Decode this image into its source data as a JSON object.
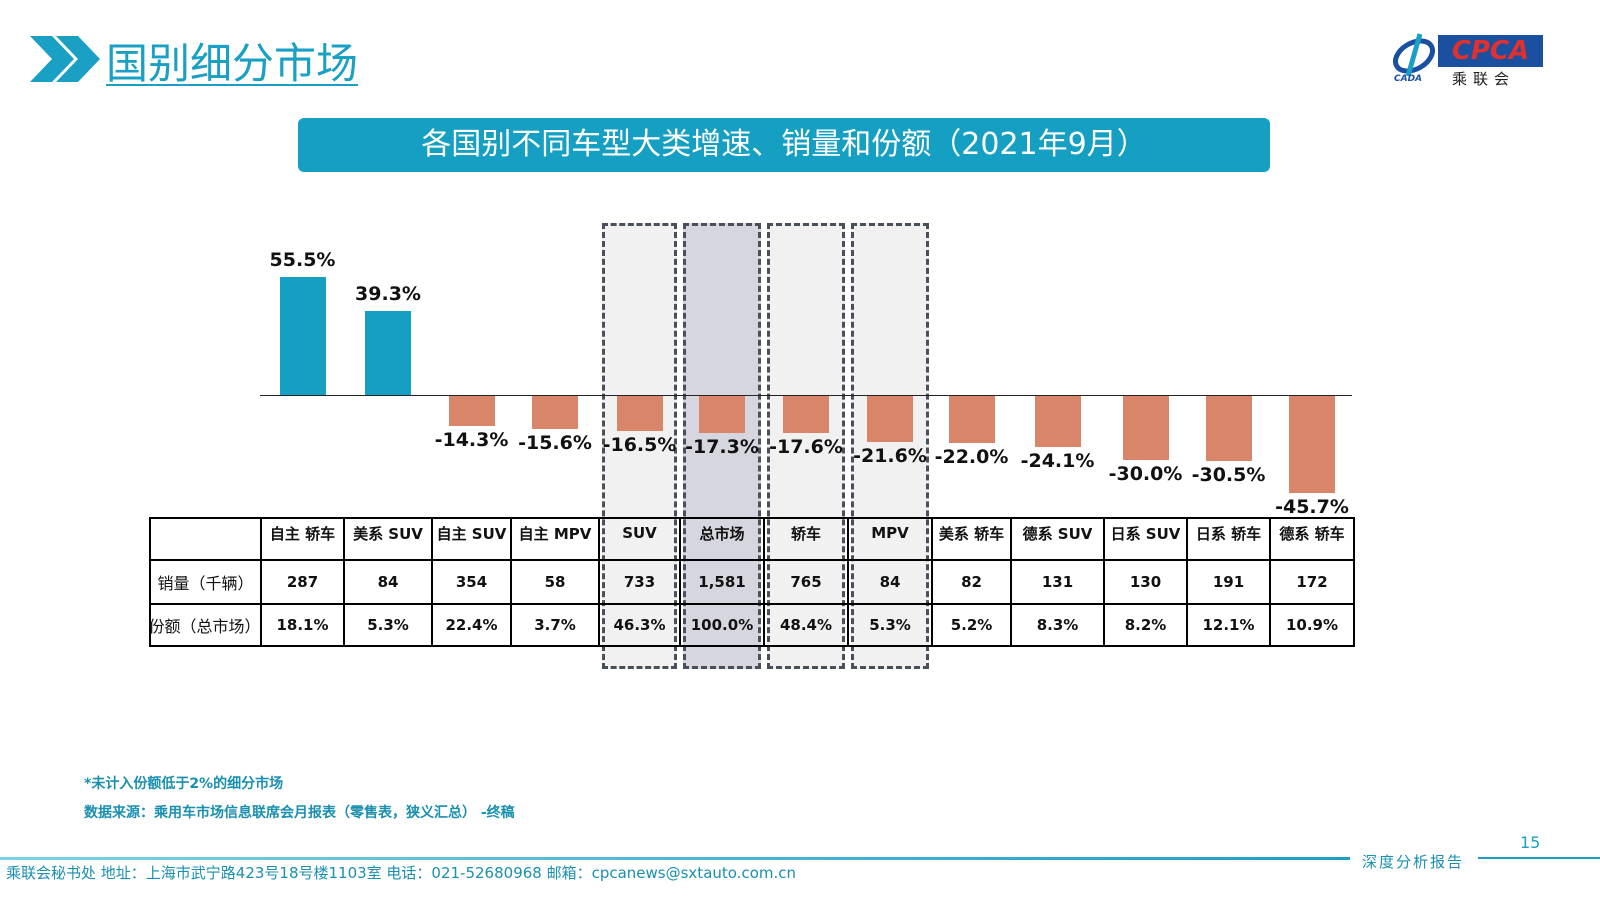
{
  "header": {
    "title": "国别细分市场",
    "logo_text": "CPCA",
    "logo_sub": "乘联会",
    "logo_small": "CADA",
    "icon": "double-chevron-right-icon"
  },
  "banner": {
    "text": "各国别不同车型大类增速、销量和份额（2021年9月）"
  },
  "chart_data": {
    "type": "bar",
    "title": "各国别不同车型大类增速、销量和份额（2021年9月）",
    "categories": [
      "自主 轿车",
      "美系 SUV",
      "自主 SUV",
      "自主 MPV",
      "SUV",
      "总市场",
      "轿车",
      "MPV",
      "美系 轿车",
      "德系 SUV",
      "日系 SUV",
      "日系 轿车",
      "德系 轿车"
    ],
    "values": [
      55.5,
      39.3,
      -14.3,
      -15.6,
      -16.5,
      -17.3,
      -17.6,
      -21.6,
      -22.0,
      -24.1,
      -30.0,
      -30.5,
      -45.7
    ],
    "value_labels": [
      "55.5%",
      "39.3%",
      "-14.3%",
      "-15.6%",
      "-16.5%",
      "-17.3%",
      "-17.6%",
      "-21.6%",
      "-22.0%",
      "-24.1%",
      "-30.0%",
      "-30.5%",
      "-45.7%"
    ],
    "unit": "%",
    "colors": {
      "positive": "#159fc2",
      "negative": "#d9856a"
    },
    "highlighted_categories": [
      "SUV",
      "总市场",
      "轿车",
      "MPV"
    ],
    "table": {
      "row_labels": [
        "销量（千辆）",
        "份额（总市场）"
      ],
      "sales": [
        "287",
        "84",
        "354",
        "58",
        "733",
        "1,581",
        "765",
        "84",
        "82",
        "131",
        "130",
        "191",
        "172"
      ],
      "share": [
        "18.1%",
        "5.3%",
        "22.4%",
        "3.7%",
        "46.3%",
        "100.0%",
        "48.4%",
        "5.3%",
        "5.2%",
        "8.3%",
        "8.2%",
        "12.1%",
        "10.9%"
      ]
    }
  },
  "notes": {
    "note1": "*未计入份额低于2%的细分市场",
    "note2": "数据来源：乘用车市场信息联席会月报表（零售表，狭义汇总） -终稿"
  },
  "footer": {
    "text": "乘联会秘书处   地址：上海市武宁路423号18号楼1103室  电话：021-52680968   邮箱：cpcanews@sxtauto.com.cn",
    "page": "15",
    "report": "深度分析报告"
  }
}
